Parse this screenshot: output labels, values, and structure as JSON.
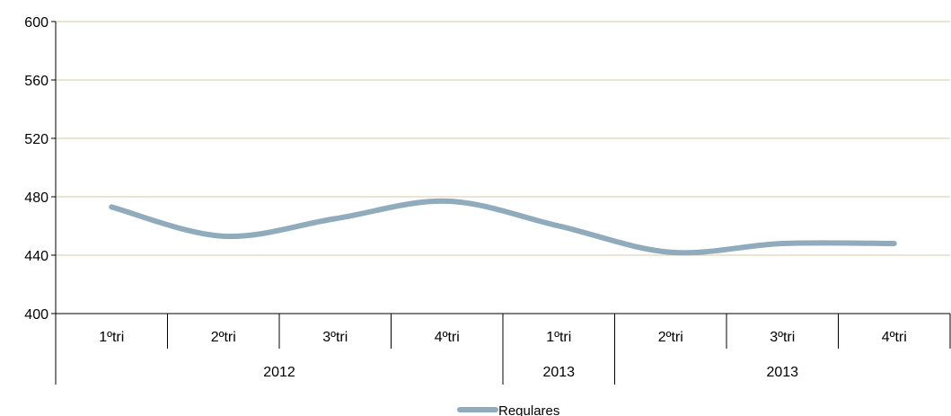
{
  "chart_data": {
    "type": "line",
    "categories": [
      "1ºtri",
      "2ºtri",
      "3ºtri",
      "4ºtri",
      "1ºtri",
      "2ºtri",
      "3ºtri",
      "4ºtri"
    ],
    "groups": [
      {
        "label": "2012",
        "count": 4
      },
      {
        "label": "2013",
        "count": 1
      },
      {
        "label": "2013",
        "count": 3
      }
    ],
    "series": [
      {
        "name": "Regulares",
        "values": [
          473,
          453,
          465,
          477,
          460,
          442,
          448,
          448
        ]
      }
    ],
    "ylim": [
      400,
      600
    ],
    "yticks": [
      400,
      440,
      480,
      520,
      560,
      600
    ],
    "grid": true,
    "legend_position": "bottom",
    "colors": {
      "line": "#8fabbc",
      "grid": "#d9c9a6",
      "axis": "#000000"
    }
  }
}
